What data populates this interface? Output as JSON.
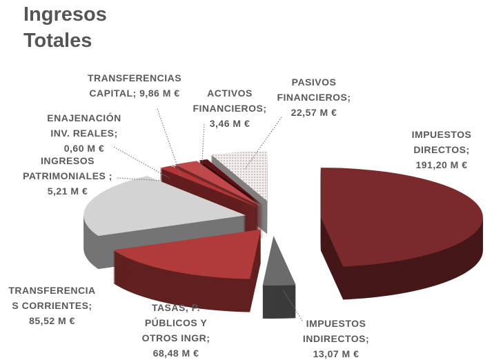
{
  "chart_data": {
    "type": "pie3d",
    "title": "Ingresos Totales",
    "categories": [
      "IMPUESTOS DIRECTOS;",
      "IMPUESTOS INDIRECTOS;",
      "TASAS, P. PÚBLICOS Y OTROS INGR;",
      "TRANSFERENCIAS CORRIENTES;",
      "INGRESOS PATRIMONIALES",
      "ENAJENACIÓN INV. REALES;",
      "TRANSFERENCIAS CAPITAL; 9,86",
      "ACTIVOS FINANCIEROS;",
      "PASIVOS FINANCIEROS;"
    ],
    "values": [
      191.2,
      13.07,
      68.48,
      85.52,
      5.21,
      0.6,
      9.86,
      3.46,
      22.57
    ],
    "value_labels": [
      "191,20 M €",
      "13,07 M €",
      "68,48 M €",
      "85,52 M €",
      "; 5,21 M €",
      "0,60 M €",
      "M €",
      "3,46 M €",
      "22,57 M €"
    ],
    "colors": [
      "#7b2a2c",
      "#6b6b6b",
      "#b13a3b",
      "#d3d3d3",
      "#b33536",
      "#8a2a2a",
      "#c0484a",
      "#5a1416",
      "#ece6e6"
    ]
  }
}
